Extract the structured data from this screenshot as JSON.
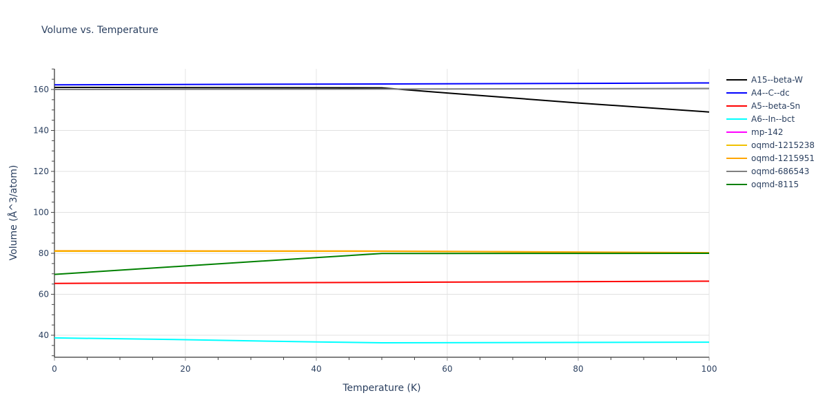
{
  "chart_data": {
    "type": "line",
    "title": "Volume vs. Temperature",
    "xlabel": "Temperature (K)",
    "ylabel": "Volume (Å^3/atom)",
    "xlim": [
      0,
      100
    ],
    "ylim": [
      29,
      170
    ],
    "x_ticks": [
      0,
      20,
      40,
      60,
      80,
      100
    ],
    "y_ticks": [
      40,
      60,
      80,
      100,
      120,
      140,
      160
    ],
    "grid": true,
    "legend_position": "right",
    "series": [
      {
        "name": "A15--beta-W",
        "color": "#000000",
        "x": [
          0,
          50,
          60,
          80,
          100
        ],
        "values": [
          161.0,
          160.8,
          158.3,
          153.4,
          149.0
        ]
      },
      {
        "name": "A4--C--dc",
        "color": "#0000ff",
        "x": [
          0,
          50,
          100
        ],
        "values": [
          162.3,
          162.7,
          163.2
        ]
      },
      {
        "name": "A5--beta-Sn",
        "color": "#ff0000",
        "x": [
          0,
          50,
          100
        ],
        "values": [
          65.3,
          65.8,
          66.4
        ]
      },
      {
        "name": "A6--In--bct",
        "color": "#00ffff",
        "x": [
          0,
          20,
          40,
          50,
          100
        ],
        "values": [
          38.7,
          37.8,
          36.7,
          36.3,
          36.6
        ]
      },
      {
        "name": "mp-142",
        "color": "#ff00ff",
        "x": [],
        "values": []
      },
      {
        "name": "oqmd-1215238",
        "color": "#f0c000",
        "x": [
          0,
          50,
          100
        ],
        "values": [
          81.0,
          81.0,
          80.2
        ]
      },
      {
        "name": "oqmd-1215951",
        "color": "#ffa500",
        "x": [
          0,
          50,
          100
        ],
        "values": [
          81.2,
          81.1,
          80.3
        ]
      },
      {
        "name": "oqmd-686543",
        "color": "#808080",
        "x": [
          0,
          50,
          100
        ],
        "values": [
          160.0,
          160.2,
          160.5
        ]
      },
      {
        "name": "oqmd-8115",
        "color": "#008000",
        "x": [
          0,
          20,
          40,
          50,
          100
        ],
        "values": [
          69.7,
          73.8,
          77.9,
          79.9,
          80.0
        ]
      }
    ]
  }
}
